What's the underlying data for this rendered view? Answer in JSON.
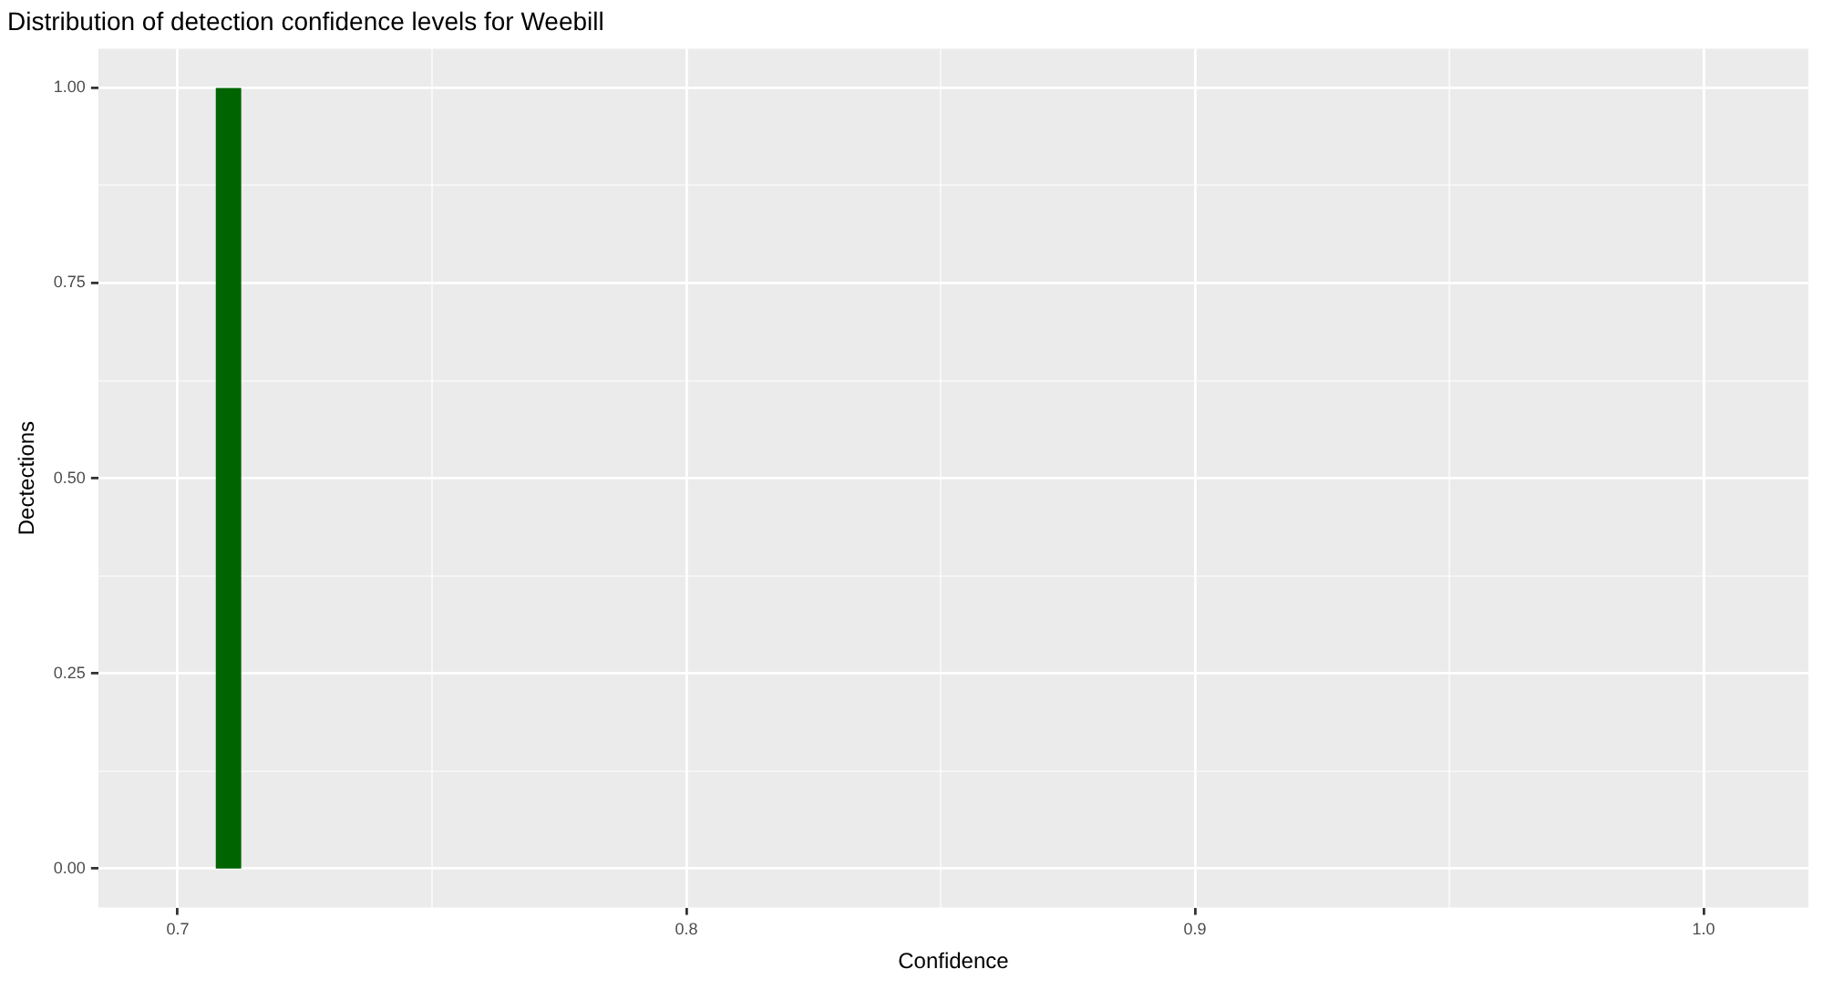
{
  "chart_data": {
    "type": "histogram",
    "title": "Distribution of detection confidence levels for Weebill",
    "xlabel": "Confidence",
    "ylabel": "Dectections",
    "bins": [
      0.7075,
      0.7125
    ],
    "values": [
      1
    ],
    "color": "#006400",
    "xlim": [
      0.6844,
      1.0206
    ],
    "xticks": [
      0.7,
      {
        "value": 0.75,
        "label": null
      },
      0.8,
      {
        "value": 0.85,
        "label": null
      },
      0.9,
      {
        "value": 0.95,
        "label": null
      },
      {
        "value": 1,
        "label": "1.0"
      }
    ],
    "ylim": [
      -0.05,
      1.05
    ],
    "yticks": [
      {
        "value": 0,
        "label": "0.00"
      },
      {
        "value": 0.125,
        "label": null
      },
      {
        "value": 0.25,
        "label": "0.25"
      },
      {
        "value": 0.375,
        "label": null
      },
      {
        "value": 0.5,
        "label": "0.50"
      },
      {
        "value": 0.625,
        "label": null
      },
      {
        "value": 0.75,
        "label": "0.75"
      },
      {
        "value": 0.875,
        "label": null
      },
      {
        "value": 1,
        "label": "1.00"
      }
    ],
    "grid": true
  }
}
